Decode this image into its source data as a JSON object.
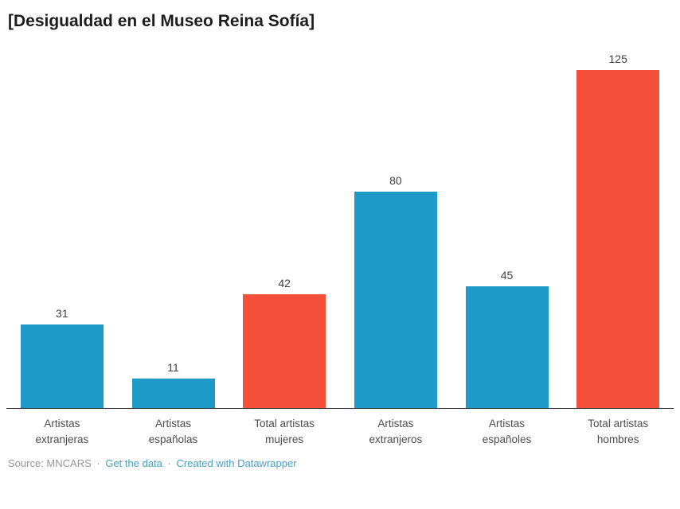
{
  "header": {
    "title": "[Desigualdad en el Museo Reina Sofía]"
  },
  "chart_data": {
    "type": "bar",
    "title": "[Desigualdad en el Museo Reina Sofía]",
    "categories": [
      "Artistas\nextranjeras",
      "Artistas\nespañolas",
      "Total artistas\nmujeres",
      "Artistas\nextranjeros",
      "Artistas\nespañoles",
      "Total artistas\nhombres"
    ],
    "values": [
      31,
      11,
      42,
      80,
      45,
      125
    ],
    "value_labels": [
      "31",
      "11",
      "42",
      "80",
      "45",
      "125"
    ],
    "bar_color_keys": [
      "blue",
      "blue",
      "red",
      "blue",
      "blue",
      "red"
    ],
    "palette": {
      "blue": "#1e9ac8",
      "red": "#f4503c"
    },
    "xlabel": "",
    "ylabel": "",
    "ylim": [
      0,
      125
    ],
    "grid": "off",
    "legend": "none",
    "value_label_position": "above-bars",
    "axis_line_color": "#2b2b2b"
  },
  "footer": {
    "source_label": "Source: MNCARS",
    "separator": "·",
    "link_get_data": "Get the data",
    "link_created": "Created with Datawrapper"
  }
}
